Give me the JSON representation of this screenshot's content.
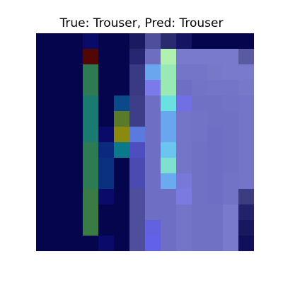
{
  "title": {
    "true_label": "Trouser",
    "pred_label": "Trouser",
    "text": "True: Trouser, Pred: Trouser"
  },
  "image": {
    "rows": 14,
    "cols": 14,
    "cells": [
      [
        "#05054e",
        "#05054e",
        "#05054e",
        "#0a0a68",
        "#05054e",
        "#05054e",
        "#1a1a60",
        "#4e4e9c",
        "#2a2a70",
        "#141462",
        "#05054e",
        "#05054e",
        "#05054e",
        "#05054e"
      ],
      [
        "#05054e",
        "#05054e",
        "#05054e",
        "#520606",
        "#05054e",
        "#05054e",
        "#262672",
        "#6e6ec0",
        "#b0f0b0",
        "#7a7acc",
        "#7a7acc",
        "#7a7acc",
        "#7a7acc",
        "#5a5aa0"
      ],
      [
        "#05054e",
        "#05054e",
        "#05054e",
        "#2e7a52",
        "#05054e",
        "#05054e",
        "#3a3a84",
        "#6aa6ee",
        "#9ae8b4",
        "#7474c8",
        "#7474c8",
        "#7878c8",
        "#7a7acc",
        "#7a7acc"
      ],
      [
        "#05054e",
        "#05054e",
        "#05054e",
        "#2e7a52",
        "#05054e",
        "#05054e",
        "#3a3a84",
        "#7a7aea",
        "#9ae8b4",
        "#6e6ec4",
        "#7272c6",
        "#7474c8",
        "#7474c8",
        "#7878c8"
      ],
      [
        "#05054e",
        "#05054e",
        "#05054e",
        "#1a7a72",
        "#05054e",
        "#0a4a8a",
        "#3e3e88",
        "#6e6ec4",
        "#6ae0e0",
        "#7070e4",
        "#7070c4",
        "#7070c4",
        "#7272c6",
        "#7474c8"
      ],
      [
        "#05054e",
        "#05054e",
        "#05054e",
        "#1a7a72",
        "#05054e",
        "#5a7a2a",
        "#3e3e88",
        "#6e6ec4",
        "#6aa6ee",
        "#7474c8",
        "#7272c6",
        "#7070c4",
        "#7070c4",
        "#7474c8"
      ],
      [
        "#05054e",
        "#05054e",
        "#05054e",
        "#1a7a72",
        "#0a0a68",
        "#8a8a10",
        "#5a7ae0",
        "#6e6ec4",
        "#6aa6ee",
        "#7474c8",
        "#7272c6",
        "#6e6ec4",
        "#7070c4",
        "#7474c8"
      ],
      [
        "#05054e",
        "#05054e",
        "#05054e",
        "#2e7a52",
        "#0a2a80",
        "#0a7a8a",
        "#4e4ec0",
        "#6e6ec4",
        "#6ac6ee",
        "#7474c8",
        "#7070c4",
        "#6e6ec4",
        "#7070c4",
        "#7474c8"
      ],
      [
        "#05054e",
        "#05054e",
        "#05054e",
        "#2e7a52",
        "#0a3080",
        "#05054e",
        "#4a4ab0",
        "#6e6ec4",
        "#80e0d0",
        "#7474c8",
        "#7070c4",
        "#6e6ec4",
        "#7070c4",
        "#7474c8"
      ],
      [
        "#05054e",
        "#05054e",
        "#05054e",
        "#2e7a52",
        "#0a3080",
        "#05054e",
        "#4a4ab0",
        "#6e6ec4",
        "#6aaaee",
        "#7878d8",
        "#7070c4",
        "#6e6ec4",
        "#7272c6",
        "#7474c8"
      ],
      [
        "#05054e",
        "#05054e",
        "#05054e",
        "#3a7a44",
        "#0a0a6a",
        "#05054e",
        "#4e4e9c",
        "#6e6ec4",
        "#6e6ec4",
        "#7a7ae0",
        "#7070c4",
        "#6e6ec4",
        "#7272c6",
        "#3c3c80"
      ],
      [
        "#05054e",
        "#05054e",
        "#05054e",
        "#3a7a44",
        "#05054e",
        "#05054e",
        "#4e4e9c",
        "#6e6ec4",
        "#6e6ec4",
        "#7474c8",
        "#7070c4",
        "#7070c4",
        "#7a7acc",
        "#22226a"
      ],
      [
        "#05054e",
        "#05054e",
        "#05054e",
        "#3a7a44",
        "#05054e",
        "#05054e",
        "#4e4e9c",
        "#6262e0",
        "#6e6ec4",
        "#7474c8",
        "#7070c4",
        "#7070c4",
        "#7a7acc",
        "#18185e"
      ],
      [
        "#05054e",
        "#05054e",
        "#05054e",
        "#05054e",
        "#0a0a6a",
        "#05054e",
        "#4e4e9c",
        "#6262e8",
        "#6e6ec4",
        "#7474c8",
        "#7070c4",
        "#7070c4",
        "#7a7acc",
        "#10105a"
      ]
    ]
  }
}
